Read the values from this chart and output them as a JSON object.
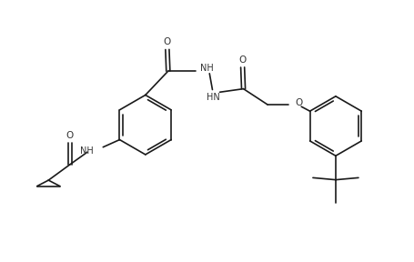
{
  "background_color": "#ffffff",
  "line_color": "#1a1a1a",
  "text_color": "#333333",
  "font_size": 7.0,
  "line_width": 1.2,
  "figsize": [
    4.56,
    2.88
  ],
  "dpi": 100,
  "xlim": [
    0,
    10
  ],
  "ylim": [
    0,
    6.3
  ]
}
